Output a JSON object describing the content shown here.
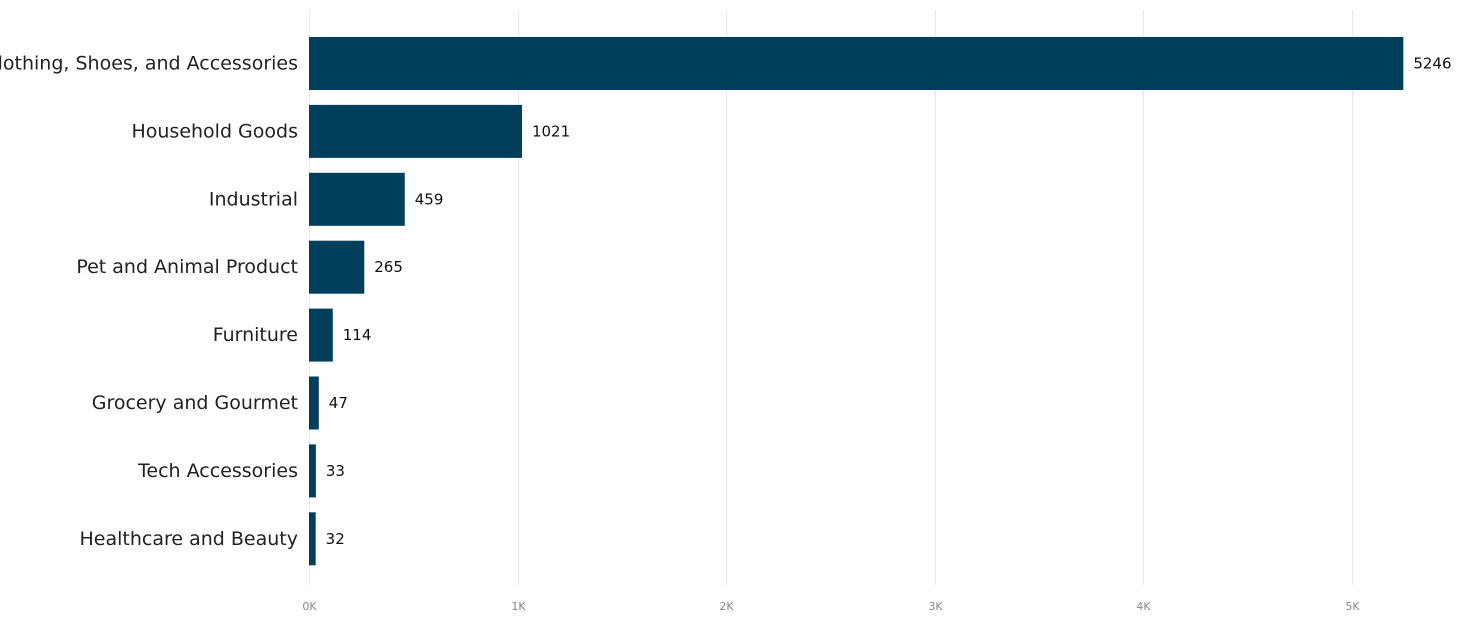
{
  "chart_data": {
    "type": "bar",
    "orientation": "horizontal",
    "title": "",
    "xlabel": "",
    "ylabel": "",
    "categories": [
      "Clothing, Shoes, and Accessories",
      "Household Goods",
      "Industrial",
      "Pet and Animal Product",
      "Furniture",
      "Grocery and Gourmet",
      "Tech Accessories",
      "Healthcare and Beauty"
    ],
    "values": [
      5246,
      1021,
      459,
      265,
      114,
      47,
      33,
      32
    ],
    "value_labels": [
      "5246",
      "1021",
      "459",
      "265",
      "114",
      "47",
      "33",
      "32"
    ],
    "xlim": [
      0,
      5000
    ],
    "xticks": [
      0,
      1000,
      2000,
      3000,
      4000,
      5000
    ],
    "xtick_labels": [
      "0K",
      "1K",
      "2K",
      "3K",
      "4K",
      "5K"
    ],
    "grid": true,
    "legend": "none",
    "bar_color": "#003f5c"
  }
}
